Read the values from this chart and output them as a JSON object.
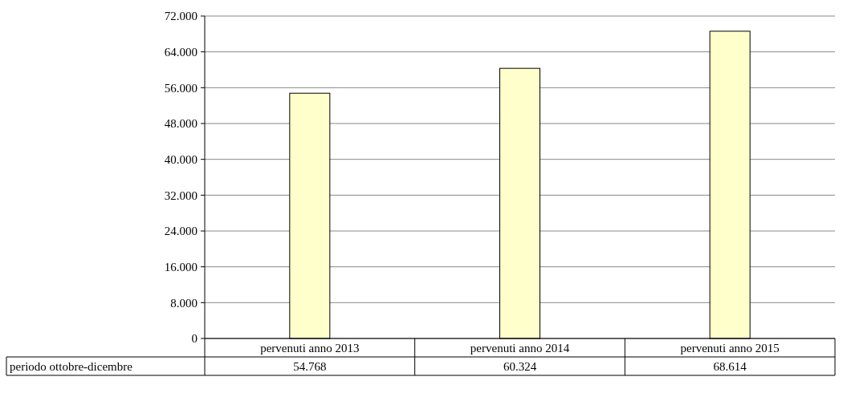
{
  "chart_data": {
    "type": "bar",
    "categories": [
      "pervenuti anno 2013",
      "pervenuti anno 2014",
      "pervenuti anno 2015"
    ],
    "series": [
      {
        "name": "periodo ottobre-dicembre",
        "color": "#ffffcc",
        "values": [
          54768,
          60324,
          68614
        ]
      }
    ],
    "value_labels": [
      "54.768",
      "60.324",
      "68.614"
    ],
    "ylim": [
      0,
      72000
    ],
    "yticks": [
      {
        "value": 0,
        "label": "0"
      },
      {
        "value": 8000,
        "label": "8.000"
      },
      {
        "value": 16000,
        "label": "16.000"
      },
      {
        "value": 24000,
        "label": "24.000"
      },
      {
        "value": 32000,
        "label": "32.000"
      },
      {
        "value": 40000,
        "label": "40.000"
      },
      {
        "value": 48000,
        "label": "48.000"
      },
      {
        "value": 56000,
        "label": "56.000"
      },
      {
        "value": 64000,
        "label": "64.000"
      },
      {
        "value": 72000,
        "label": "72.000"
      }
    ],
    "grid": "y",
    "legend": "bottom left"
  }
}
